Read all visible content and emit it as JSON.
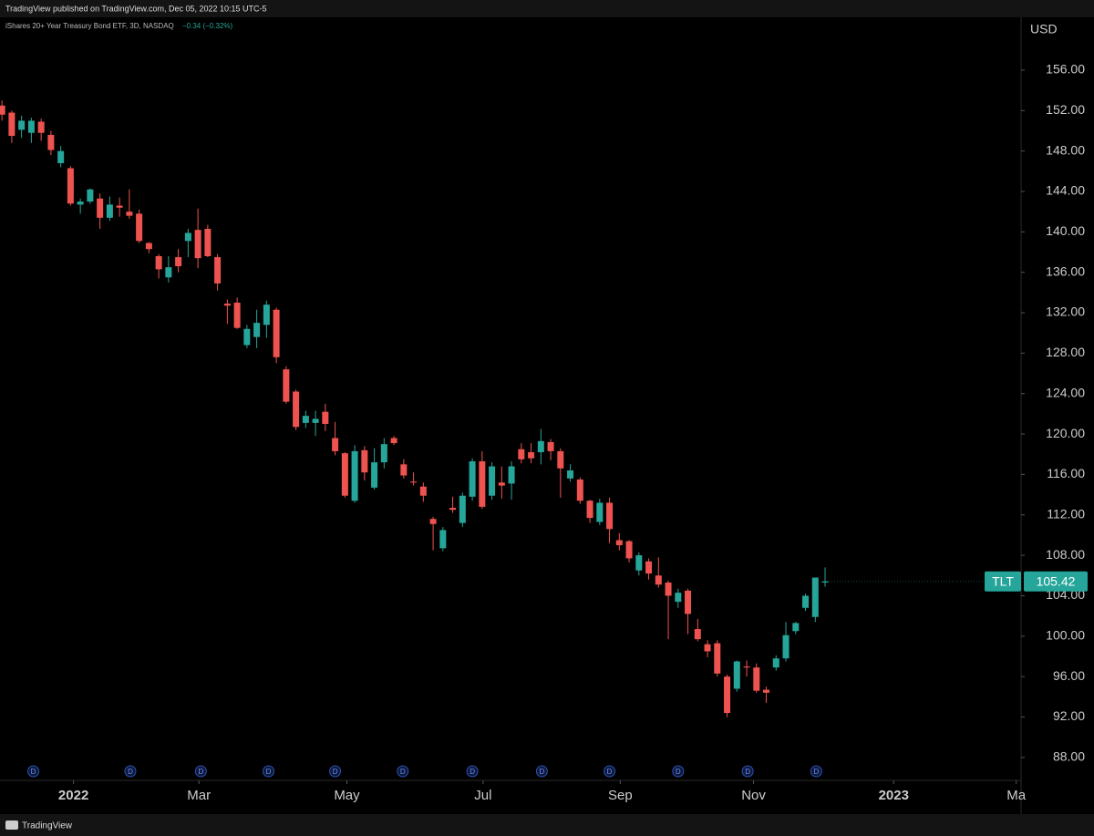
{
  "chart_data": {
    "type": "candlestick",
    "publisher": "TradingView published on TradingView.com, Dec 05, 2022 10:15 UTC-5",
    "title": "iShares 20+ Year Treasury Bond ETF, 3D, NASDAQ",
    "change": "−0.34 (−0.32%)",
    "currency": "USD",
    "symbol": "TLT",
    "last_price": 105.42,
    "footer": "TradingView",
    "up_color": "#26a69a",
    "down_color": "#ef5350",
    "open": [
      152.5,
      151.8,
      150.1,
      149.8,
      150.9,
      149.6,
      146.8,
      146.3,
      142.7,
      143.0,
      143.3,
      141.4,
      142.6,
      142.0,
      141.8,
      138.9,
      137.6,
      135.5,
      137.5,
      139.1,
      140.2,
      140.3,
      137.5,
      132.9,
      133.0,
      128.8,
      129.6,
      130.8,
      132.3,
      126.4,
      124.2,
      121.1,
      121.1,
      122.2,
      119.6,
      118.1,
      113.4,
      118.4,
      114.7,
      117.2,
      119.6,
      117.0,
      115.3,
      114.8,
      111.6,
      108.7,
      112.7,
      111.2,
      113.8,
      117.3,
      113.9,
      115.2,
      115.1,
      118.5,
      118.2,
      118.2,
      119.2,
      118.3,
      115.6,
      115.5,
      113.4,
      111.3,
      113.2,
      109.5,
      109.4,
      106.5,
      107.4,
      106.0,
      105.3,
      103.4,
      104.5,
      100.7,
      99.2,
      99.3,
      96.0,
      94.8,
      97.0,
      96.9,
      94.7,
      96.9,
      97.8,
      100.5,
      102.8,
      101.9,
      105.3
    ],
    "high": [
      153.0,
      152.0,
      151.5,
      151.3,
      151.2,
      150.0,
      148.5,
      146.5,
      143.3,
      144.3,
      143.8,
      143.5,
      143.4,
      144.2,
      142.2,
      139.0,
      137.8,
      137.6,
      138.3,
      140.3,
      142.3,
      140.7,
      137.8,
      133.3,
      133.5,
      130.8,
      132.3,
      133.2,
      132.5,
      126.7,
      124.4,
      122.3,
      122.3,
      123.0,
      121.2,
      118.2,
      118.9,
      118.8,
      118.6,
      119.6,
      119.8,
      117.5,
      116.2,
      115.2,
      111.8,
      110.8,
      113.8,
      114.2,
      117.6,
      118.3,
      117.2,
      116.8,
      117.3,
      119.1,
      119.1,
      120.5,
      119.5,
      118.6,
      117.0,
      115.7,
      113.5,
      113.6,
      113.7,
      110.2,
      109.5,
      108.3,
      107.7,
      107.8,
      105.5,
      104.7,
      104.7,
      101.7,
      99.6,
      99.6,
      96.2,
      97.6,
      97.6,
      97.3,
      95.0,
      98.1,
      101.4,
      101.4,
      104.2,
      105.8,
      106.8
    ],
    "low": [
      151.0,
      148.8,
      149.3,
      148.8,
      149.0,
      147.6,
      146.4,
      142.6,
      141.8,
      142.8,
      140.3,
      141.1,
      141.5,
      141.3,
      138.9,
      137.9,
      135.4,
      135.0,
      136.0,
      137.5,
      136.4,
      137.5,
      134.2,
      130.9,
      130.4,
      128.5,
      128.5,
      129.5,
      127.0,
      123.0,
      120.4,
      120.6,
      119.8,
      120.3,
      117.9,
      113.7,
      113.2,
      115.4,
      114.5,
      116.6,
      118.9,
      115.6,
      114.9,
      113.3,
      108.5,
      108.4,
      112.2,
      110.8,
      113.4,
      112.6,
      113.5,
      113.6,
      113.5,
      117.1,
      117.1,
      117.0,
      117.4,
      113.7,
      115.3,
      113.1,
      111.2,
      111.0,
      109.2,
      108.5,
      107.3,
      106.0,
      105.6,
      104.8,
      99.7,
      102.8,
      100.2,
      99.5,
      97.9,
      96.0,
      92.0,
      94.5,
      96.0,
      94.4,
      93.4,
      96.6,
      97.5,
      100.2,
      102.5,
      101.4,
      104.9
    ],
    "close": [
      151.6,
      149.5,
      151.0,
      151.0,
      149.8,
      148.1,
      148.0,
      142.8,
      143.0,
      144.2,
      141.4,
      142.7,
      142.4,
      141.6,
      139.1,
      138.3,
      136.3,
      136.5,
      136.6,
      139.9,
      137.4,
      137.6,
      134.9,
      132.7,
      130.5,
      130.4,
      131.0,
      132.8,
      127.6,
      123.2,
      120.7,
      121.8,
      121.5,
      121.0,
      118.3,
      113.9,
      118.3,
      116.2,
      117.2,
      119.0,
      119.1,
      115.9,
      115.2,
      113.9,
      111.1,
      110.5,
      112.5,
      113.9,
      117.3,
      112.8,
      116.8,
      114.9,
      116.8,
      117.5,
      117.6,
      119.3,
      118.3,
      116.6,
      116.4,
      113.4,
      111.7,
      113.2,
      110.6,
      109.0,
      107.7,
      108.0,
      106.2,
      105.1,
      104.0,
      104.3,
      102.2,
      99.7,
      98.5,
      96.3,
      92.4,
      97.5,
      96.9,
      94.6,
      94.4,
      97.8,
      100.1,
      101.3,
      104.0,
      105.8,
      105.42
    ],
    "xlim": [
      -0.2,
      104
    ],
    "xticks": [
      {
        "value": 7.3,
        "label": "2022"
      },
      {
        "value": 20.1,
        "label": "Mar"
      },
      {
        "value": 35.2,
        "label": "May"
      },
      {
        "value": 49.1,
        "label": "Jul"
      },
      {
        "value": 63.1,
        "label": "Sep"
      },
      {
        "value": 76.7,
        "label": "Nov"
      },
      {
        "value": 91.0,
        "label": "2023"
      },
      {
        "value": 103.5,
        "label": "Ma"
      }
    ],
    "ylim": [
      85.73,
      161.23
    ],
    "yticks": [
      {
        "value": 88,
        "label": "88.00"
      },
      {
        "value": 92,
        "label": "92.00"
      },
      {
        "value": 96,
        "label": "96.00"
      },
      {
        "value": 100,
        "label": "100.00"
      },
      {
        "value": 104,
        "label": "104.00"
      },
      {
        "value": 108,
        "label": "108.00"
      },
      {
        "value": 112,
        "label": "112.00"
      },
      {
        "value": 116,
        "label": "116.00"
      },
      {
        "value": 120,
        "label": "120.00"
      },
      {
        "value": 124,
        "label": "124.00"
      },
      {
        "value": 128,
        "label": "128.00"
      },
      {
        "value": 132,
        "label": "132.00"
      },
      {
        "value": 136,
        "label": "136.00"
      },
      {
        "value": 140,
        "label": "140.00"
      },
      {
        "value": 144,
        "label": "144.00"
      },
      {
        "value": 148,
        "label": "148.00"
      },
      {
        "value": 152,
        "label": "152.00"
      },
      {
        "value": 156,
        "label": "156.00"
      }
    ],
    "dividends": {
      "label": "D",
      "x": [
        3.2,
        13.1,
        20.3,
        27.2,
        34.0,
        40.9,
        48.0,
        55.1,
        62.0,
        69.0,
        76.1,
        83.1
      ]
    }
  }
}
